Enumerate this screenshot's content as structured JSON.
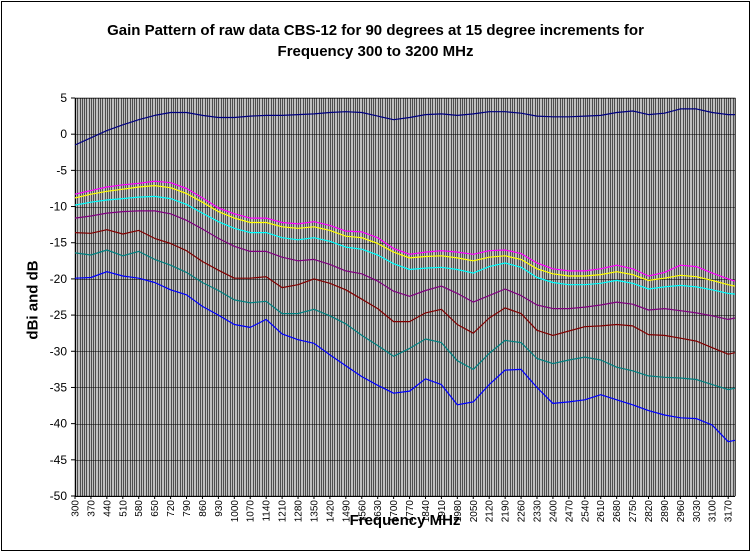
{
  "chart_data": {
    "type": "line",
    "title_lines": [
      "Gain Pattern of raw data CBS-12 for 90 degrees at 15 degree increments for",
      "Frequency 300 to 3200 MHz"
    ],
    "xlabel": "Frequency MHz",
    "ylabel": "dBi and dB",
    "ylim": [
      -50,
      5
    ],
    "yticks": [
      5,
      0,
      -5,
      -10,
      -15,
      -20,
      -25,
      -30,
      -35,
      -40,
      -45,
      -50
    ],
    "xlim": [
      300,
      3200
    ],
    "xticks": [
      300,
      370,
      440,
      510,
      580,
      650,
      720,
      790,
      860,
      930,
      1000,
      1070,
      1140,
      1210,
      1280,
      1350,
      1420,
      1490,
      1560,
      1630,
      1700,
      1770,
      1840,
      1910,
      1980,
      2050,
      2120,
      2190,
      2260,
      2330,
      2400,
      2470,
      2540,
      2610,
      2680,
      2750,
      2820,
      2890,
      2960,
      3030,
      3100,
      3170
    ],
    "grid": true,
    "plot_background": "#c0c0c0",
    "x": [
      300,
      370,
      440,
      510,
      580,
      650,
      720,
      790,
      860,
      930,
      1000,
      1070,
      1140,
      1210,
      1280,
      1350,
      1420,
      1490,
      1560,
      1630,
      1700,
      1770,
      1840,
      1910,
      1980,
      2050,
      2120,
      2190,
      2260,
      2330,
      2400,
      2470,
      2540,
      2610,
      2680,
      2750,
      2820,
      2890,
      2960,
      3030,
      3100,
      3170,
      3200
    ],
    "series": [
      {
        "color": "#000080",
        "values": [
          -1.5,
          -0.5,
          0.5,
          1.3,
          2.0,
          2.6,
          3.0,
          3.0,
          2.6,
          2.3,
          2.3,
          2.5,
          2.6,
          2.6,
          2.7,
          2.8,
          3.0,
          3.1,
          3.0,
          2.5,
          2.0,
          2.3,
          2.7,
          2.8,
          2.6,
          2.8,
          3.1,
          3.1,
          2.9,
          2.5,
          2.4,
          2.4,
          2.5,
          2.6,
          3.0,
          3.2,
          2.7,
          2.9,
          3.5,
          3.5,
          3.0,
          2.7,
          2.7
        ]
      },
      {
        "color": "#ff00ff",
        "values": [
          -8.3,
          -7.8,
          -7.3,
          -7.0,
          -6.8,
          -6.5,
          -6.7,
          -7.5,
          -8.8,
          -10.2,
          -11.0,
          -11.6,
          -11.6,
          -12.2,
          -12.4,
          -12.1,
          -12.6,
          -13.4,
          -13.5,
          -14.3,
          -15.8,
          -16.6,
          -16.3,
          -16.1,
          -16.3,
          -16.6,
          -16.1,
          -16.0,
          -16.5,
          -17.8,
          -18.6,
          -18.9,
          -18.9,
          -18.6,
          -18.1,
          -18.6,
          -19.6,
          -19.1,
          -18.1,
          -18.3,
          -19.2,
          -20.0,
          -20.3
        ]
      },
      {
        "color": "#ffff00",
        "values": [
          -8.8,
          -8.3,
          -7.9,
          -7.6,
          -7.3,
          -7.1,
          -7.4,
          -8.2,
          -9.4,
          -10.7,
          -11.6,
          -12.2,
          -12.2,
          -12.8,
          -13.0,
          -12.8,
          -13.3,
          -14.1,
          -14.3,
          -15.1,
          -16.3,
          -17.1,
          -16.9,
          -16.8,
          -17.1,
          -17.5,
          -17.0,
          -16.8,
          -17.3,
          -18.6,
          -19.3,
          -19.6,
          -19.6,
          -19.4,
          -19.0,
          -19.4,
          -20.2,
          -19.9,
          -19.5,
          -19.7,
          -20.2,
          -20.8,
          -21.0
        ]
      },
      {
        "color": "#00ffff",
        "values": [
          -9.8,
          -9.4,
          -9.1,
          -8.9,
          -8.7,
          -8.6,
          -8.9,
          -9.7,
          -10.9,
          -12.1,
          -13.0,
          -13.6,
          -13.6,
          -14.3,
          -14.6,
          -14.3,
          -14.8,
          -15.6,
          -15.9,
          -16.7,
          -17.9,
          -18.7,
          -18.5,
          -18.4,
          -18.7,
          -19.2,
          -18.3,
          -17.8,
          -18.4,
          -19.8,
          -20.5,
          -20.8,
          -20.8,
          -20.6,
          -20.2,
          -20.6,
          -21.4,
          -21.1,
          -20.9,
          -21.1,
          -21.5,
          -22.0,
          -22.1
        ]
      },
      {
        "color": "#800080",
        "values": [
          -11.6,
          -11.3,
          -10.9,
          -10.7,
          -10.6,
          -10.6,
          -11.0,
          -11.9,
          -13.1,
          -14.4,
          -15.5,
          -16.2,
          -16.2,
          -17.0,
          -17.5,
          -17.3,
          -18.0,
          -18.9,
          -19.3,
          -20.3,
          -21.7,
          -22.4,
          -21.6,
          -21.0,
          -22.0,
          -23.2,
          -22.3,
          -21.4,
          -22.3,
          -23.6,
          -24.1,
          -24.1,
          -23.9,
          -23.6,
          -23.2,
          -23.5,
          -24.3,
          -24.1,
          -24.4,
          -24.7,
          -25.1,
          -25.6,
          -25.4
        ]
      },
      {
        "color": "#800000",
        "values": [
          -13.6,
          -13.7,
          -13.2,
          -13.8,
          -13.3,
          -14.4,
          -15.1,
          -16.1,
          -17.6,
          -18.8,
          -19.9,
          -19.9,
          -19.7,
          -21.2,
          -20.8,
          -20.0,
          -20.6,
          -21.5,
          -22.8,
          -24.1,
          -25.9,
          -25.9,
          -24.7,
          -24.2,
          -26.3,
          -27.5,
          -25.4,
          -24.0,
          -24.8,
          -27.1,
          -27.8,
          -27.2,
          -26.6,
          -26.5,
          -26.3,
          -26.5,
          -27.7,
          -27.8,
          -28.2,
          -28.6,
          -29.5,
          -30.4,
          -30.2
        ]
      },
      {
        "color": "#008080",
        "values": [
          -16.4,
          -16.7,
          -16.0,
          -16.8,
          -16.2,
          -17.3,
          -18.1,
          -19.1,
          -20.5,
          -21.6,
          -22.9,
          -23.3,
          -23.1,
          -24.8,
          -24.8,
          -24.2,
          -25.1,
          -26.2,
          -27.8,
          -29.2,
          -30.7,
          -29.6,
          -28.3,
          -28.8,
          -31.3,
          -32.5,
          -30.3,
          -28.5,
          -28.8,
          -31.0,
          -31.7,
          -31.2,
          -30.8,
          -31.2,
          -32.2,
          -32.7,
          -33.4,
          -33.6,
          -33.7,
          -33.9,
          -34.6,
          -35.3,
          -35.1
        ]
      },
      {
        "color": "#0000ff",
        "values": [
          -19.9,
          -19.8,
          -19.0,
          -19.6,
          -19.9,
          -20.5,
          -21.5,
          -22.2,
          -23.8,
          -25.0,
          -26.3,
          -26.7,
          -25.6,
          -27.6,
          -28.4,
          -28.9,
          -30.5,
          -32.0,
          -33.5,
          -34.7,
          -35.8,
          -35.5,
          -33.8,
          -34.6,
          -37.4,
          -37.0,
          -34.6,
          -32.6,
          -32.5,
          -35.0,
          -37.2,
          -37.0,
          -36.7,
          -36.0,
          -36.7,
          -37.4,
          -38.2,
          -38.8,
          -39.2,
          -39.3,
          -40.2,
          -42.5,
          -42.3
        ]
      }
    ]
  }
}
